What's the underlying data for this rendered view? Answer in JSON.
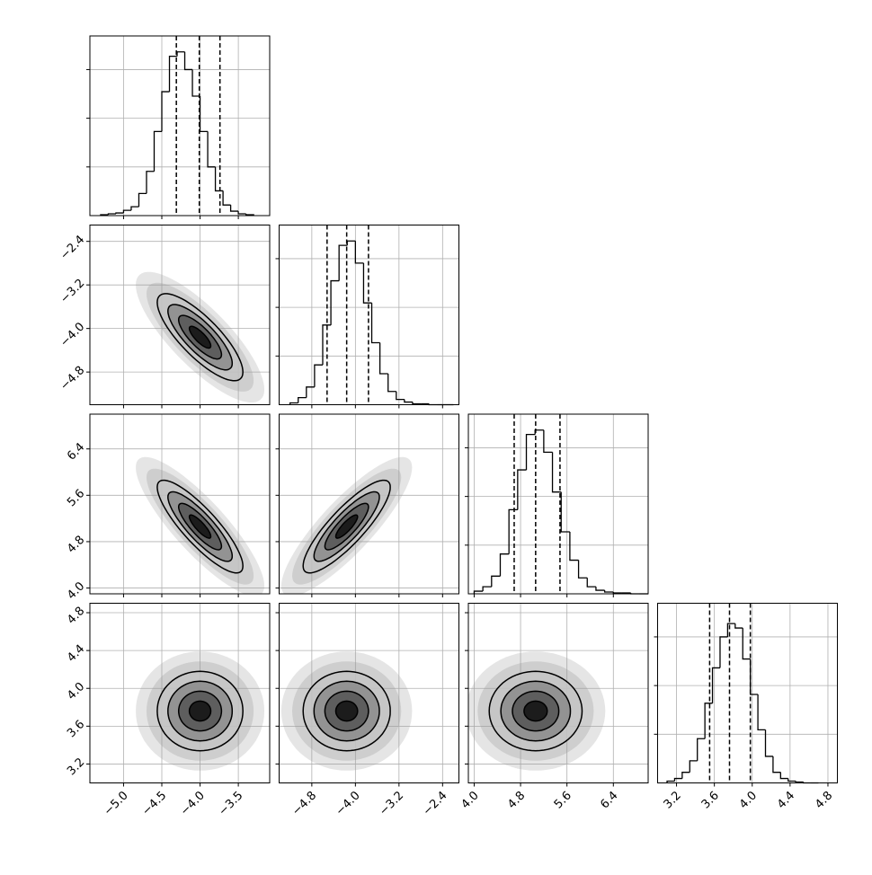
{
  "chart_data": {
    "type": "corner",
    "grid": true,
    "color": "#000000",
    "levels": [
      0.5,
      1,
      1.5,
      2
    ],
    "hist_ylim": [
      0,
      203
    ],
    "hist_yticks": [
      55,
      110,
      165
    ],
    "params": [
      {
        "lim": [
          -5.44,
          -3.09
        ],
        "ticks": [
          {
            "value": -5,
            "label": "−5.0"
          },
          {
            "value": -4.5,
            "label": "−4.5"
          },
          {
            "value": -4,
            "label": "−4.0"
          },
          {
            "value": -3.5,
            "label": "−3.5"
          }
        ],
        "bins": [
          -5.3,
          -5.2,
          -5.1,
          -5.0,
          -4.9,
          -4.8,
          -4.7,
          -4.6,
          -4.5,
          -4.4,
          -4.3,
          -4.2,
          -4.1,
          -4.0,
          -3.9,
          -3.8,
          -3.7,
          -3.6,
          -3.5,
          -3.4,
          -3.3
        ],
        "counts": [
          1,
          2,
          3,
          6,
          10,
          25,
          50,
          95,
          140,
          180,
          185,
          165,
          135,
          95,
          55,
          28,
          12,
          5,
          2,
          1
        ],
        "quantiles": [
          -4.31,
          -4.01,
          -3.74
        ]
      },
      {
        "lim": [
          -5.4,
          -2.1
        ],
        "ticks": [
          {
            "value": -4.8,
            "label": "−4.8"
          },
          {
            "value": -4,
            "label": "−4.0"
          },
          {
            "value": -3.2,
            "label": "−3.2"
          },
          {
            "value": -2.4,
            "label": "−2.4"
          }
        ],
        "bins": [
          -5.2,
          -5.05,
          -4.9,
          -4.75,
          -4.6,
          -4.45,
          -4.3,
          -4.15,
          -4.0,
          -3.85,
          -3.7,
          -3.55,
          -3.4,
          -3.25,
          -3.1,
          -2.95,
          -2.8,
          -2.65,
          -2.5,
          -2.35,
          -2.2
        ],
        "counts": [
          2,
          8,
          20,
          45,
          90,
          140,
          180,
          185,
          160,
          115,
          70,
          35,
          15,
          6,
          3,
          1,
          1,
          0,
          0,
          0
        ],
        "quantiles": [
          -4.52,
          -4.16,
          -3.76
        ]
      },
      {
        "lim": [
          3.9,
          7.0
        ],
        "ticks": [
          {
            "value": 4,
            "label": "4.0"
          },
          4.8,
          5.6,
          6.4
        ],
        "bins": [
          4.0,
          4.15,
          4.3,
          4.45,
          4.6,
          4.75,
          4.9,
          5.05,
          5.2,
          5.35,
          5.5,
          5.65,
          5.8,
          5.95,
          6.1,
          6.25,
          6.4,
          6.55,
          6.7,
          6.85,
          7.0
        ],
        "counts": [
          3,
          8,
          20,
          45,
          95,
          140,
          180,
          185,
          160,
          115,
          70,
          38,
          18,
          8,
          4,
          2,
          1,
          1,
          0,
          0
        ],
        "quantiles": [
          4.69,
          5.06,
          5.48
        ]
      },
      {
        "lim": [
          3.0,
          4.9
        ],
        "ticks": [
          3.2,
          3.6,
          {
            "value": 4,
            "label": "4.0"
          },
          4.4,
          4.8
        ],
        "bins": [
          3.1,
          3.18,
          3.26,
          3.34,
          3.42,
          3.5,
          3.58,
          3.66,
          3.74,
          3.82,
          3.9,
          3.98,
          4.06,
          4.14,
          4.22,
          4.3,
          4.38,
          4.46,
          4.54,
          4.62,
          4.7
        ],
        "counts": [
          2,
          5,
          12,
          25,
          50,
          90,
          130,
          165,
          180,
          175,
          140,
          100,
          60,
          30,
          12,
          5,
          2,
          1,
          0,
          0
        ],
        "quantiles": [
          3.55,
          3.76,
          3.98
        ]
      }
    ],
    "pairs": [
      {
        "x_param": 0,
        "y_param": 1,
        "center": [
          -4.0,
          -4.16
        ],
        "sigma": [
          0.28,
          0.4
        ],
        "rho": -0.8
      },
      {
        "x_param": 0,
        "y_param": 2,
        "center": [
          -4.0,
          5.06
        ],
        "sigma": [
          0.28,
          0.4
        ],
        "rho": -0.85
      },
      {
        "x_param": 1,
        "y_param": 2,
        "center": [
          -4.16,
          5.06
        ],
        "sigma": [
          0.4,
          0.4
        ],
        "rho": 0.85
      },
      {
        "x_param": 0,
        "y_param": 3,
        "center": [
          -4.0,
          3.76
        ],
        "sigma": [
          0.28,
          0.21
        ],
        "rho": 0
      },
      {
        "x_param": 1,
        "y_param": 3,
        "center": [
          -4.16,
          3.76
        ],
        "sigma": [
          0.4,
          0.21
        ],
        "rho": 0
      },
      {
        "x_param": 2,
        "y_param": 3,
        "center": [
          5.06,
          3.76
        ],
        "sigma": [
          0.4,
          0.21
        ],
        "rho": 0
      }
    ]
  }
}
